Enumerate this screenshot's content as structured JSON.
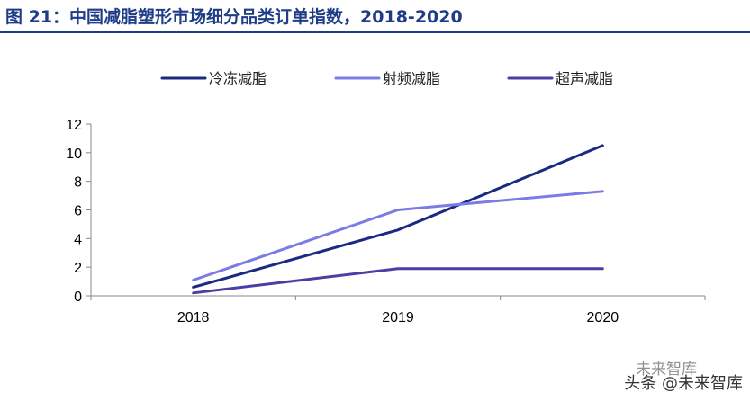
{
  "figure": {
    "title": "图 21：中国减脂塑形市场细分品类订单指数，2018-2020"
  },
  "chart_data": {
    "type": "line",
    "x": [
      "2018",
      "2019",
      "2020"
    ],
    "series": [
      {
        "name": "冷冻减脂",
        "values": [
          0.6,
          4.6,
          10.5
        ],
        "color": "#1a2a80"
      },
      {
        "name": "射频减脂",
        "values": [
          1.1,
          6.0,
          7.3
        ],
        "color": "#7b7be6"
      },
      {
        "name": "超声减脂",
        "values": [
          0.2,
          1.9,
          1.9
        ],
        "color": "#4b3fa6"
      }
    ],
    "title": "",
    "xlabel": "",
    "ylabel": "",
    "ylim": [
      0,
      12
    ],
    "yticks": [
      "0",
      "2",
      "4",
      "6",
      "8",
      "10",
      "12"
    ],
    "grid": false,
    "legend_position": "top"
  },
  "watermark": {
    "text": "未来智库"
  },
  "footer": {
    "text": "头条 @未来智库"
  }
}
